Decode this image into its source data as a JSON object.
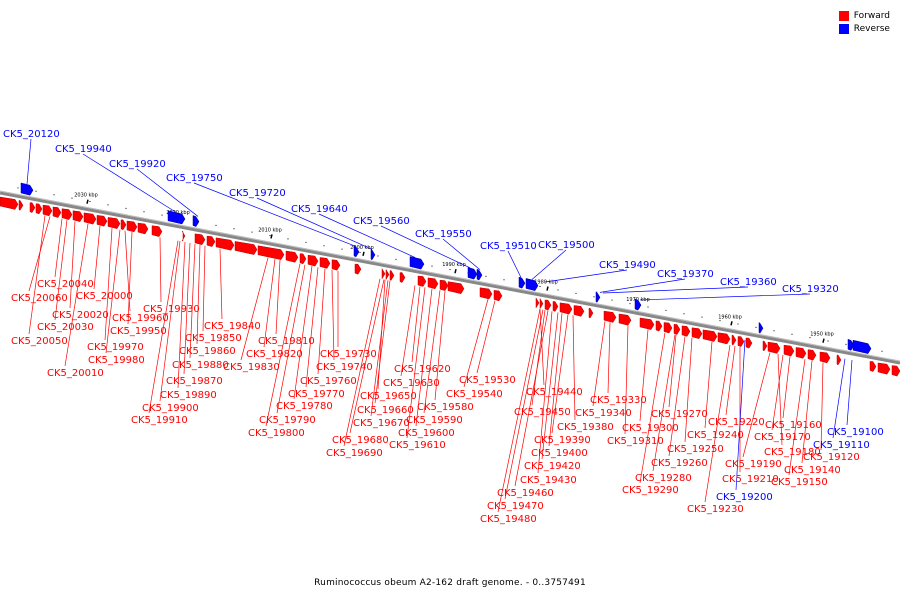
{
  "legend": {
    "forward_label": "Forward",
    "reverse_label": "Reverse",
    "forward_color": "#ff0000",
    "reverse_color": "#0000ff"
  },
  "caption": "Ruminococcus obeum A2-162 draft genome. - 0..3757491",
  "scale_labels": [
    "2030 kbp",
    "2020 kbp",
    "2010 kbp",
    "2000 kbp",
    "1990 kbp",
    "1980 kbp",
    "1970 kbp",
    "1960 kbp",
    "1950 kbp"
  ],
  "forward_genes": [
    "CK5_20040",
    "CK5_20060",
    "CK5_20000",
    "CK5_20020",
    "CK5_20030",
    "CK5_20050",
    "CK5_19960",
    "CK5_19950",
    "CK5_19970",
    "CK5_19980",
    "CK5_20010",
    "CK5_19930",
    "CK5_19840",
    "CK5_19850",
    "CK5_19860",
    "CK5_19880",
    "CK5_19870",
    "CK5_19890",
    "CK5_19900",
    "CK5_19910",
    "CK5_19810",
    "CK5_19820",
    "CK5_19830",
    "CK5_19730",
    "CK5_19740",
    "CK5_19760",
    "CK5_19770",
    "CK5_19780",
    "CK5_19790",
    "CK5_19800",
    "CK5_19650",
    "CK5_19660",
    "CK5_19670",
    "CK5_19680",
    "CK5_19690",
    "CK5_19620",
    "CK5_19630",
    "CK5_19580",
    "CK5_19590",
    "CK5_19600",
    "CK5_19610",
    "CK5_19530",
    "CK5_19540",
    "CK5_19440",
    "CK5_19450",
    "CK5_19380",
    "CK5_19390",
    "CK5_19400",
    "CK5_19420",
    "CK5_19430",
    "CK5_19460",
    "CK5_19470",
    "CK5_19480",
    "CK5_19330",
    "CK5_19340",
    "CK5_19310",
    "CK5_19300",
    "CK5_19270",
    "CK5_19250",
    "CK5_19260",
    "CK5_19280",
    "CK5_19290",
    "CK5_19240",
    "CK5_19220",
    "CK5_19210",
    "CK5_19230",
    "CK5_19160",
    "CK5_19170",
    "CK5_19180",
    "CK5_19190",
    "CK5_19120",
    "CK5_19140",
    "CK5_19150"
  ],
  "reverse_genes": [
    "CK5_20120",
    "CK5_19940",
    "CK5_19920",
    "CK5_19750",
    "CK5_19720",
    "CK5_19640",
    "CK5_19560",
    "CK5_19550",
    "CK5_19510",
    "CK5_19500",
    "CK5_19490",
    "CK5_19370",
    "CK5_19360",
    "CK5_19320",
    "CK5_19100",
    "CK5_19110",
    "CK5_19200"
  ]
}
